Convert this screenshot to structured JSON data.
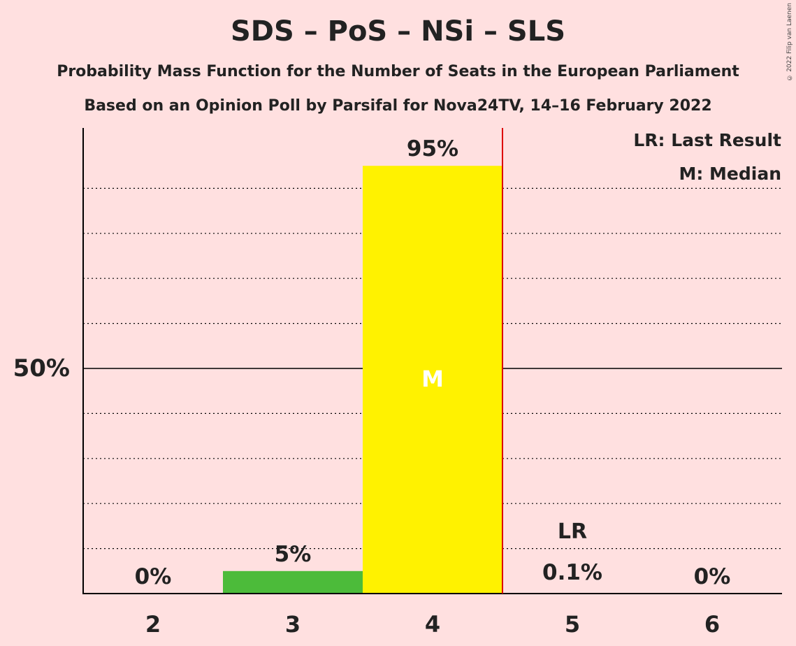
{
  "title": "SDS – PoS – NSi – SLS",
  "subtitle": "Probability Mass Function for the Number of Seats in the European Parliament",
  "subtitle2": "Based on an Opinion Poll by Parsifal for Nova24TV, 14–16 February 2022",
  "copyright": "© 2022 Filip van Laenen",
  "legend": {
    "last_result": "LR: Last Result",
    "median": "M: Median"
  },
  "colors": {
    "background": "#ffe0e0",
    "bar_default": "#4cbb3a",
    "bar_median": "#fff200",
    "last_result_line": "#dd0000",
    "text": "#222222"
  },
  "chart_data": {
    "type": "bar",
    "categories": [
      "2",
      "3",
      "4",
      "5",
      "6"
    ],
    "values": [
      0,
      5,
      95,
      0.1,
      0
    ],
    "labels": [
      "0%",
      "5%",
      "95%",
      "0.1%",
      "0%"
    ],
    "bar_colors": [
      "#4cbb3a",
      "#4cbb3a",
      "#fff200",
      "#4cbb3a",
      "#4cbb3a"
    ],
    "ylim": [
      0,
      100
    ],
    "y_tick_label": "50%",
    "y_tick_value": 50,
    "gridlines": [
      10,
      20,
      30,
      40,
      60,
      70,
      80,
      90
    ],
    "median_category": "4",
    "median_marker": "M",
    "last_result_category": "5",
    "last_result_marker": "LR",
    "legend_position": "top-right"
  }
}
